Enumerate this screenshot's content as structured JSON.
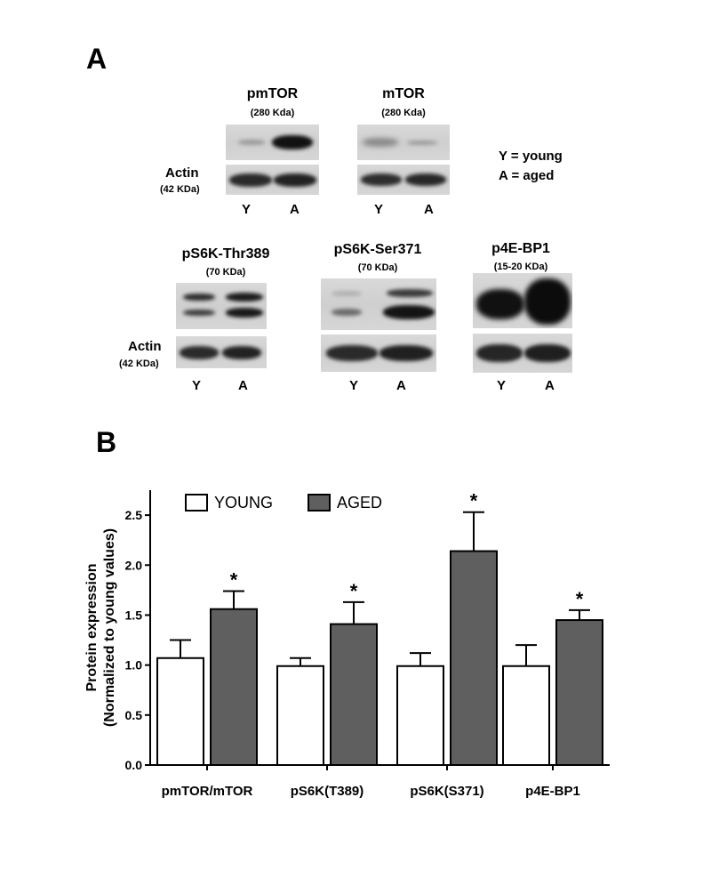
{
  "panel_a": {
    "letter": "A",
    "key": {
      "young": "Y =  young",
      "aged": "A = aged"
    },
    "blots": {
      "pmtor": {
        "title": "pmTOR",
        "kda": "(280 Kda)"
      },
      "mtor": {
        "title": "mTOR",
        "kda": "(280 Kda)"
      },
      "thr389": {
        "title": "pS6K-Thr389",
        "kda": "(70 KDa)"
      },
      "ser371": {
        "title": "pS6K-Ser371",
        "kda": "(70 KDa)"
      },
      "p4ebp1": {
        "title": "p4E-BP1",
        "kda": "(15-20 KDa)"
      }
    },
    "actin_top": {
      "label": "Actin",
      "kda": "(42 KDa)"
    },
    "actin_bottom": {
      "label": "Actin",
      "kda": "(42 KDa)"
    },
    "lanes": {
      "y": "Y",
      "a": "A"
    }
  },
  "panel_b": {
    "letter": "B"
  },
  "chart_data": {
    "type": "bar",
    "title": "",
    "ylabel_line1": "Protein expression",
    "ylabel_line2": "(Normalized to young values)",
    "xlabel": "",
    "ylim": [
      0,
      2.75
    ],
    "yticks": [
      "0.0",
      "0.5",
      "1.0",
      "1.5",
      "2.0",
      "2.5"
    ],
    "legend_position": "top-left",
    "categories": [
      "pmTOR/mTOR",
      "pS6K(T389)",
      "pS6K(S371)",
      "p4E-BP1"
    ],
    "series": [
      {
        "name": "YOUNG",
        "color": "#ffffff",
        "values": [
          1.07,
          0.99,
          0.99,
          0.99
        ],
        "errors": [
          0.18,
          0.08,
          0.13,
          0.21
        ]
      },
      {
        "name": "AGED",
        "color": "#5f5f5f",
        "values": [
          1.56,
          1.41,
          2.14,
          1.45
        ],
        "errors": [
          0.18,
          0.22,
          0.39,
          0.1
        ]
      }
    ],
    "significance": [
      "*",
      "*",
      "*",
      "*"
    ]
  }
}
